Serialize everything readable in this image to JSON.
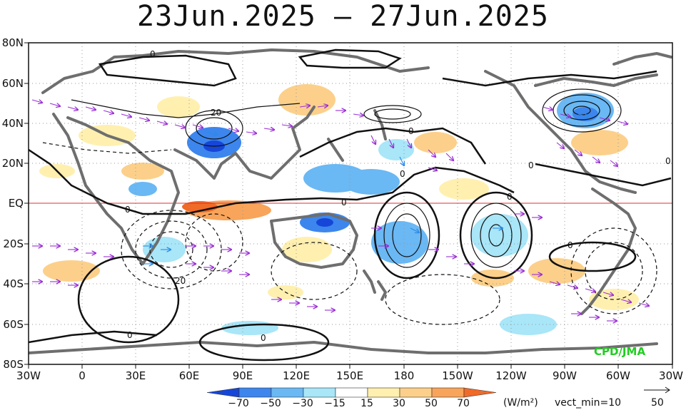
{
  "title": "23Jun.2025 – 27Jun.2025",
  "lat_labels": [
    "80N",
    "60N",
    "40N",
    "20N",
    "EQ",
    "20S",
    "40S",
    "60S",
    "80S"
  ],
  "lon_labels": [
    "30W",
    "0",
    "30E",
    "60E",
    "90E",
    "120E",
    "150E",
    "180",
    "150W",
    "120W",
    "90W",
    "60W",
    "30W"
  ],
  "colorbar": {
    "ticks": [
      "−70",
      "−50",
      "−30",
      "−15",
      "15",
      "30",
      "50",
      "70"
    ],
    "colors": [
      "#1646d8",
      "#3c86ee",
      "#6ab8f4",
      "#a8e6f8",
      "#ffffff",
      "#fff0b0",
      "#fcd08a",
      "#f8a45a",
      "#f06a28"
    ],
    "units": "(W/m²)",
    "vect_min": "vect_min=10",
    "ref_vector": "50"
  },
  "watermark": "CPD/JMA",
  "contour_labels": [
    "0",
    "0",
    "20",
    "0",
    "0",
    "0",
    "0",
    "0",
    "0",
    "20",
    "0",
    "0",
    "0"
  ]
}
